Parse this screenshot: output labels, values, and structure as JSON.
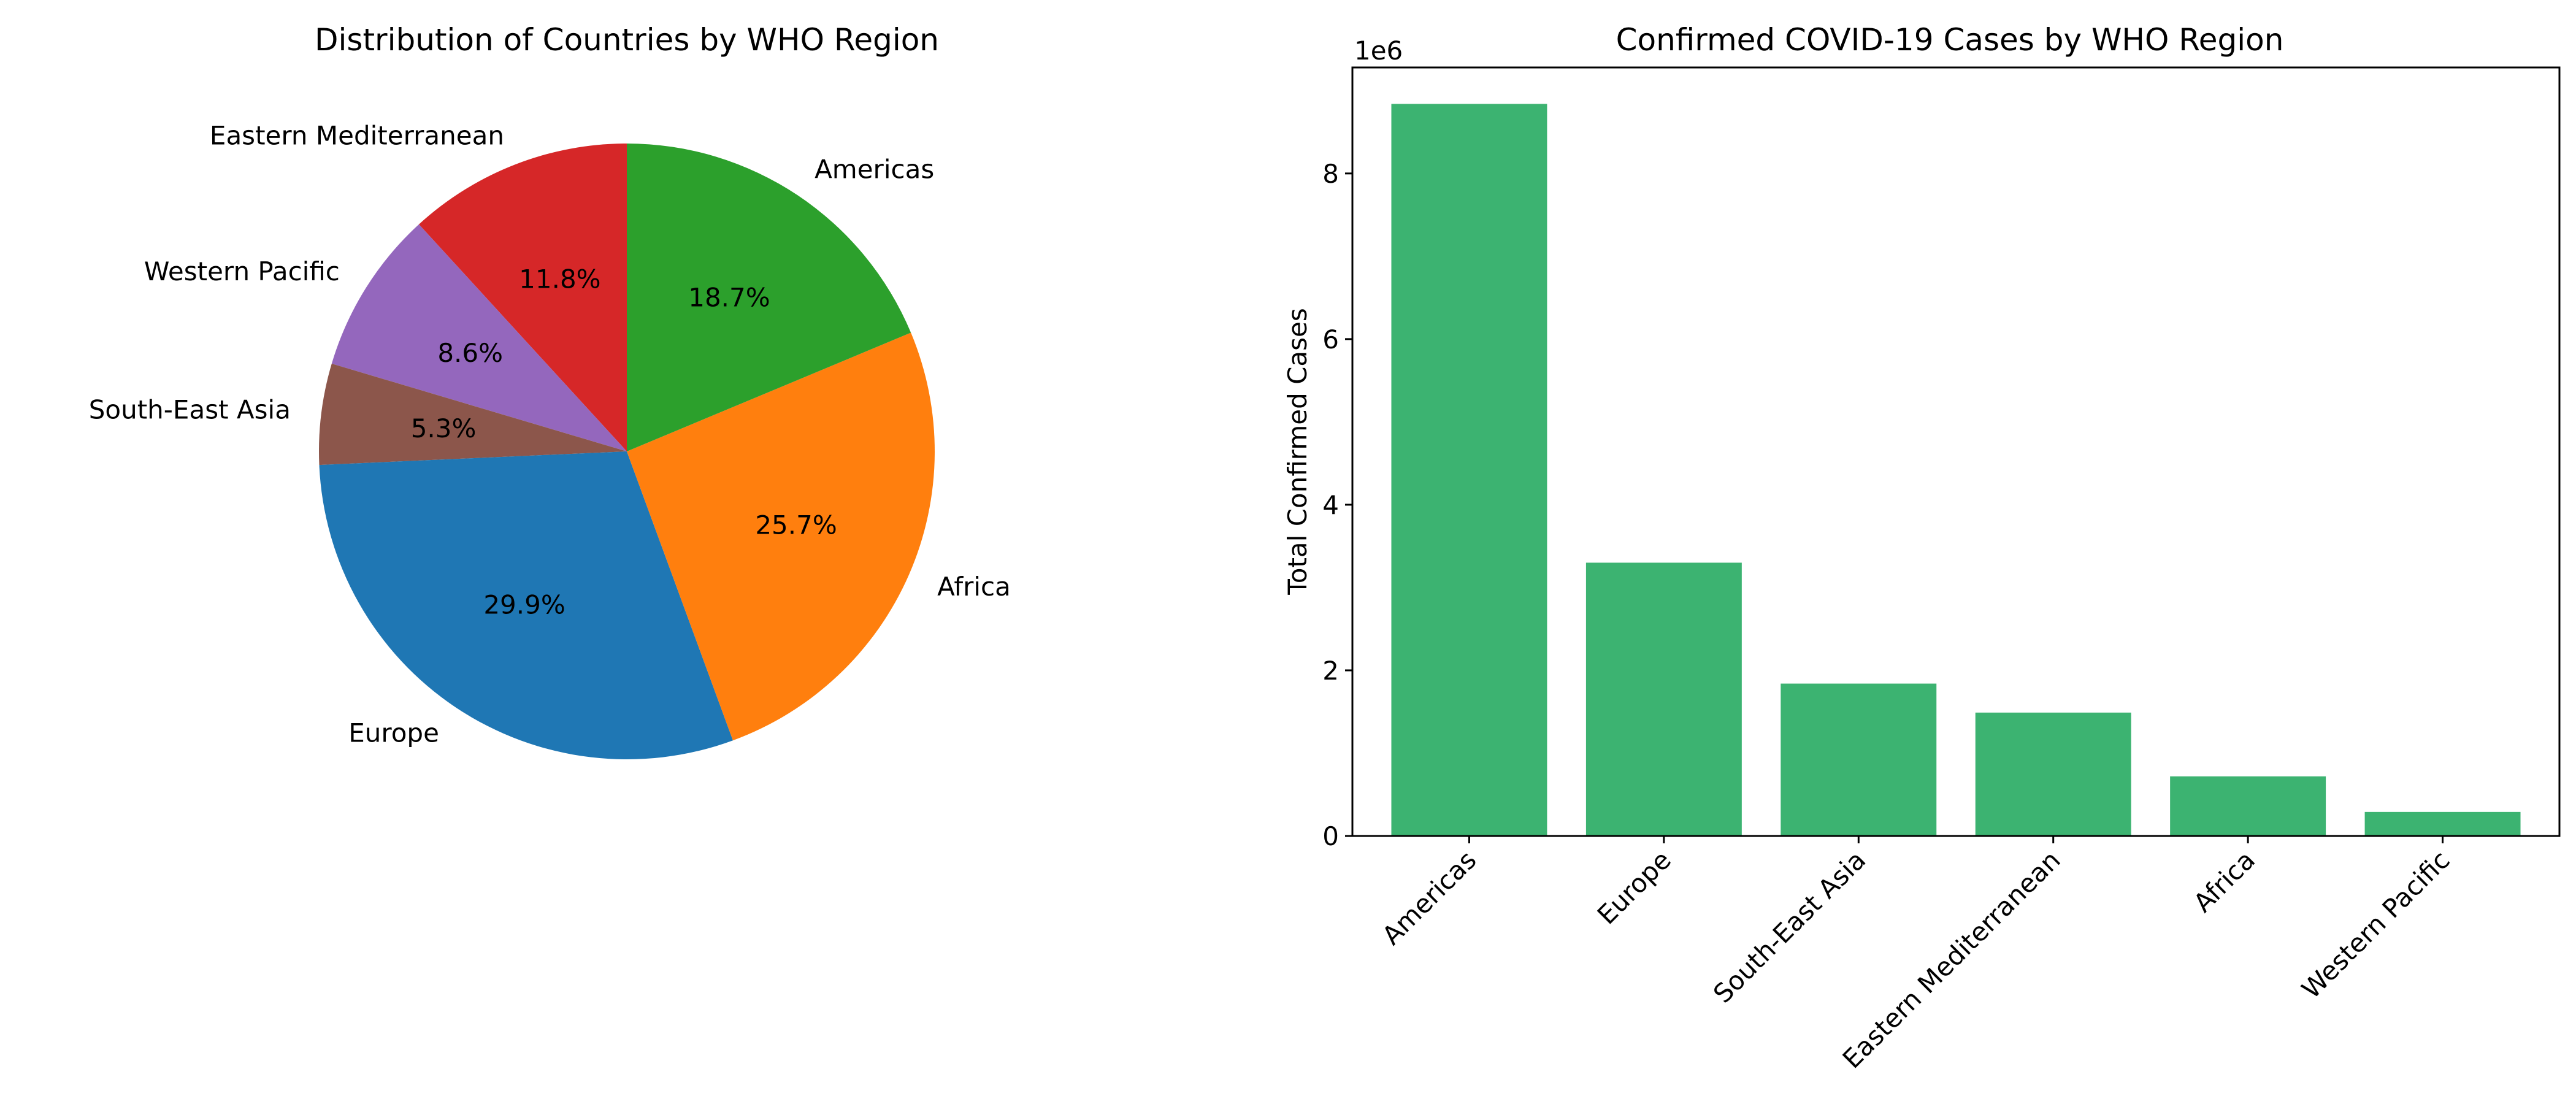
{
  "chart_data": [
    {
      "type": "pie",
      "title": "Distribution of Countries by WHO Region",
      "start_angle_deg": 90,
      "direction": "counterclockwise",
      "slices": [
        {
          "label": "Eastern Mediterranean",
          "value": 11.8,
          "pct_label": "11.8%",
          "color": "#d62728"
        },
        {
          "label": "Western Pacific",
          "value": 8.6,
          "pct_label": "8.6%",
          "color": "#9467bd"
        },
        {
          "label": "South-East Asia",
          "value": 5.3,
          "pct_label": "5.3%",
          "color": "#8c564b"
        },
        {
          "label": "Europe",
          "value": 29.9,
          "pct_label": "29.9%",
          "color": "#1f77b4"
        },
        {
          "label": "Africa",
          "value": 25.7,
          "pct_label": "25.7%",
          "color": "#ff7f0e"
        },
        {
          "label": "Americas",
          "value": 18.7,
          "pct_label": "18.7%",
          "color": "#2ca02c"
        }
      ]
    },
    {
      "type": "bar",
      "title": "Confirmed COVID-19 Cases by WHO Region",
      "xlabel": "",
      "ylabel": "Total Confirmed Cases",
      "y_offset_label": "1e6",
      "categories": [
        "Americas",
        "Europe",
        "South-East Asia",
        "Eastern Mediterranean",
        "Africa",
        "Western Pacific"
      ],
      "values": [
        8840000,
        3300000,
        1840000,
        1490000,
        720000,
        290000
      ],
      "ylim": [
        0,
        9280000
      ],
      "yticks": [
        0,
        2000000,
        4000000,
        6000000,
        8000000
      ],
      "ytick_labels": [
        "0",
        "2",
        "4",
        "6",
        "8"
      ],
      "bar_color": "#3cb371",
      "grid": false
    }
  ]
}
